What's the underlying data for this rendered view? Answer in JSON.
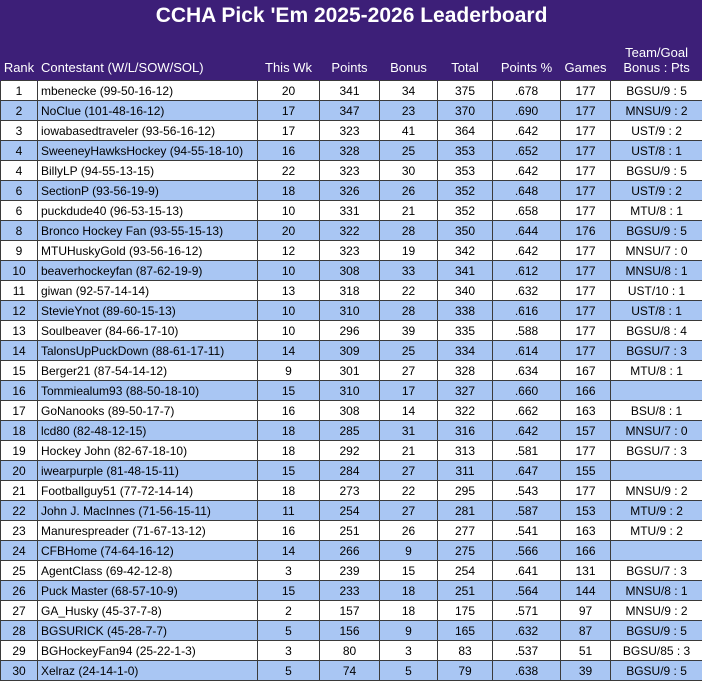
{
  "title": "CCHA Pick 'Em 2025-2026 Leaderboard",
  "headers": {
    "rank": "Rank",
    "contestant": "Contestant (W/L/SOW/SOL)",
    "this_wk": "This Wk",
    "points": "Points",
    "bonus": "Bonus",
    "total": "Total",
    "points_pct": "Points %",
    "games": "Games",
    "team_goal_1": "Team/Goal",
    "team_goal_2": "Bonus : Pts"
  },
  "colors": {
    "header_bg": "#3d1f78",
    "header_text": "#ffffff",
    "alt_row": "#a9c6f3",
    "row": "#ffffff"
  },
  "rows": [
    {
      "rank": "1",
      "contestant": "mbenecke (99-50-16-12)",
      "this_wk": "20",
      "points": "341",
      "bonus": "34",
      "total": "375",
      "pct": ".678",
      "games": "177",
      "team": "BGSU/9 : 5"
    },
    {
      "rank": "2",
      "contestant": "NoClue (101-48-16-12)",
      "this_wk": "17",
      "points": "347",
      "bonus": "23",
      "total": "370",
      "pct": ".690",
      "games": "177",
      "team": "MNSU/9 : 2"
    },
    {
      "rank": "3",
      "contestant": "iowabasedtraveler (93-56-16-12)",
      "this_wk": "17",
      "points": "323",
      "bonus": "41",
      "total": "364",
      "pct": ".642",
      "games": "177",
      "team": "UST/9 : 2"
    },
    {
      "rank": "4",
      "contestant": "SweeneyHawksHockey (94-55-18-10)",
      "this_wk": "16",
      "points": "328",
      "bonus": "25",
      "total": "353",
      "pct": ".652",
      "games": "177",
      "team": "UST/8 : 1"
    },
    {
      "rank": "4",
      "contestant": "BillyLP (94-55-13-15)",
      "this_wk": "22",
      "points": "323",
      "bonus": "30",
      "total": "353",
      "pct": ".642",
      "games": "177",
      "team": "BGSU/9 : 5"
    },
    {
      "rank": "6",
      "contestant": "SectionP (93-56-19-9)",
      "this_wk": "18",
      "points": "326",
      "bonus": "26",
      "total": "352",
      "pct": ".648",
      "games": "177",
      "team": "UST/9 : 2"
    },
    {
      "rank": "6",
      "contestant": "puckdude40 (96-53-15-13)",
      "this_wk": "10",
      "points": "331",
      "bonus": "21",
      "total": "352",
      "pct": ".658",
      "games": "177",
      "team": "MTU/8 : 1"
    },
    {
      "rank": "8",
      "contestant": "Bronco Hockey Fan (93-55-15-13)",
      "this_wk": "20",
      "points": "322",
      "bonus": "28",
      "total": "350",
      "pct": ".644",
      "games": "176",
      "team": "BGSU/9 : 5"
    },
    {
      "rank": "9",
      "contestant": "MTUHuskyGold (93-56-16-12)",
      "this_wk": "12",
      "points": "323",
      "bonus": "19",
      "total": "342",
      "pct": ".642",
      "games": "177",
      "team": "MNSU/7 : 0"
    },
    {
      "rank": "10",
      "contestant": "beaverhockeyfan (87-62-19-9)",
      "this_wk": "10",
      "points": "308",
      "bonus": "33",
      "total": "341",
      "pct": ".612",
      "games": "177",
      "team": "MNSU/8 : 1"
    },
    {
      "rank": "11",
      "contestant": "giwan (92-57-14-14)",
      "this_wk": "13",
      "points": "318",
      "bonus": "22",
      "total": "340",
      "pct": ".632",
      "games": "177",
      "team": "UST/10 : 1"
    },
    {
      "rank": "12",
      "contestant": "StevieYnot (89-60-15-13)",
      "this_wk": "10",
      "points": "310",
      "bonus": "28",
      "total": "338",
      "pct": ".616",
      "games": "177",
      "team": "UST/8 : 1"
    },
    {
      "rank": "13",
      "contestant": "Soulbeaver (84-66-17-10)",
      "this_wk": "10",
      "points": "296",
      "bonus": "39",
      "total": "335",
      "pct": ".588",
      "games": "177",
      "team": "BGSU/8 : 4"
    },
    {
      "rank": "14",
      "contestant": "TalonsUpPuckDown (88-61-17-11)",
      "this_wk": "14",
      "points": "309",
      "bonus": "25",
      "total": "334",
      "pct": ".614",
      "games": "177",
      "team": "BGSU/7 : 3"
    },
    {
      "rank": "15",
      "contestant": "Berger21 (87-54-14-12)",
      "this_wk": "9",
      "points": "301",
      "bonus": "27",
      "total": "328",
      "pct": ".634",
      "games": "167",
      "team": "MTU/8 : 1"
    },
    {
      "rank": "16",
      "contestant": "Tommiealum93 (88-50-18-10)",
      "this_wk": "15",
      "points": "310",
      "bonus": "17",
      "total": "327",
      "pct": ".660",
      "games": "166",
      "team": ""
    },
    {
      "rank": "17",
      "contestant": "GoNanooks (89-50-17-7)",
      "this_wk": "16",
      "points": "308",
      "bonus": "14",
      "total": "322",
      "pct": ".662",
      "games": "163",
      "team": "BSU/8 : 1"
    },
    {
      "rank": "18",
      "contestant": "lcd80 (82-48-12-15)",
      "this_wk": "18",
      "points": "285",
      "bonus": "31",
      "total": "316",
      "pct": ".642",
      "games": "157",
      "team": "MNSU/7 : 0"
    },
    {
      "rank": "19",
      "contestant": "Hockey John (82-67-18-10)",
      "this_wk": "18",
      "points": "292",
      "bonus": "21",
      "total": "313",
      "pct": ".581",
      "games": "177",
      "team": "BGSU/7 : 3"
    },
    {
      "rank": "20",
      "contestant": "iwearpurple (81-48-15-11)",
      "this_wk": "15",
      "points": "284",
      "bonus": "27",
      "total": "311",
      "pct": ".647",
      "games": "155",
      "team": ""
    },
    {
      "rank": "21",
      "contestant": "Footballguy51 (77-72-14-14)",
      "this_wk": "18",
      "points": "273",
      "bonus": "22",
      "total": "295",
      "pct": ".543",
      "games": "177",
      "team": "MNSU/9 : 2"
    },
    {
      "rank": "22",
      "contestant": "John J. MacInnes (71-56-15-11)",
      "this_wk": "11",
      "points": "254",
      "bonus": "27",
      "total": "281",
      "pct": ".587",
      "games": "153",
      "team": "MTU/9 : 2"
    },
    {
      "rank": "23",
      "contestant": "Manurespreader (71-67-13-12)",
      "this_wk": "16",
      "points": "251",
      "bonus": "26",
      "total": "277",
      "pct": ".541",
      "games": "163",
      "team": "MTU/9 : 2"
    },
    {
      "rank": "24",
      "contestant": "CFBHome (74-64-16-12)",
      "this_wk": "14",
      "points": "266",
      "bonus": "9",
      "total": "275",
      "pct": ".566",
      "games": "166",
      "team": ""
    },
    {
      "rank": "25",
      "contestant": "AgentClass (69-42-12-8)",
      "this_wk": "3",
      "points": "239",
      "bonus": "15",
      "total": "254",
      "pct": ".641",
      "games": "131",
      "team": "BGSU/7 : 3"
    },
    {
      "rank": "26",
      "contestant": "Puck Master (68-57-10-9)",
      "this_wk": "15",
      "points": "233",
      "bonus": "18",
      "total": "251",
      "pct": ".564",
      "games": "144",
      "team": "MNSU/8 : 1"
    },
    {
      "rank": "27",
      "contestant": "GA_Husky (45-37-7-8)",
      "this_wk": "2",
      "points": "157",
      "bonus": "18",
      "total": "175",
      "pct": ".571",
      "games": "97",
      "team": "MNSU/9 : 2"
    },
    {
      "rank": "28",
      "contestant": "BGSURICK (45-28-7-7)",
      "this_wk": "5",
      "points": "156",
      "bonus": "9",
      "total": "165",
      "pct": ".632",
      "games": "87",
      "team": "BGSU/9 : 5"
    },
    {
      "rank": "29",
      "contestant": "BGHockeyFan94 (25-22-1-3)",
      "this_wk": "3",
      "points": "80",
      "bonus": "3",
      "total": "83",
      "pct": ".537",
      "games": "51",
      "team": "BGSU/85 : 3"
    },
    {
      "rank": "30",
      "contestant": "Xelraz (24-14-1-0)",
      "this_wk": "5",
      "points": "74",
      "bonus": "5",
      "total": "79",
      "pct": ".638",
      "games": "39",
      "team": "BGSU/9 : 5"
    }
  ]
}
